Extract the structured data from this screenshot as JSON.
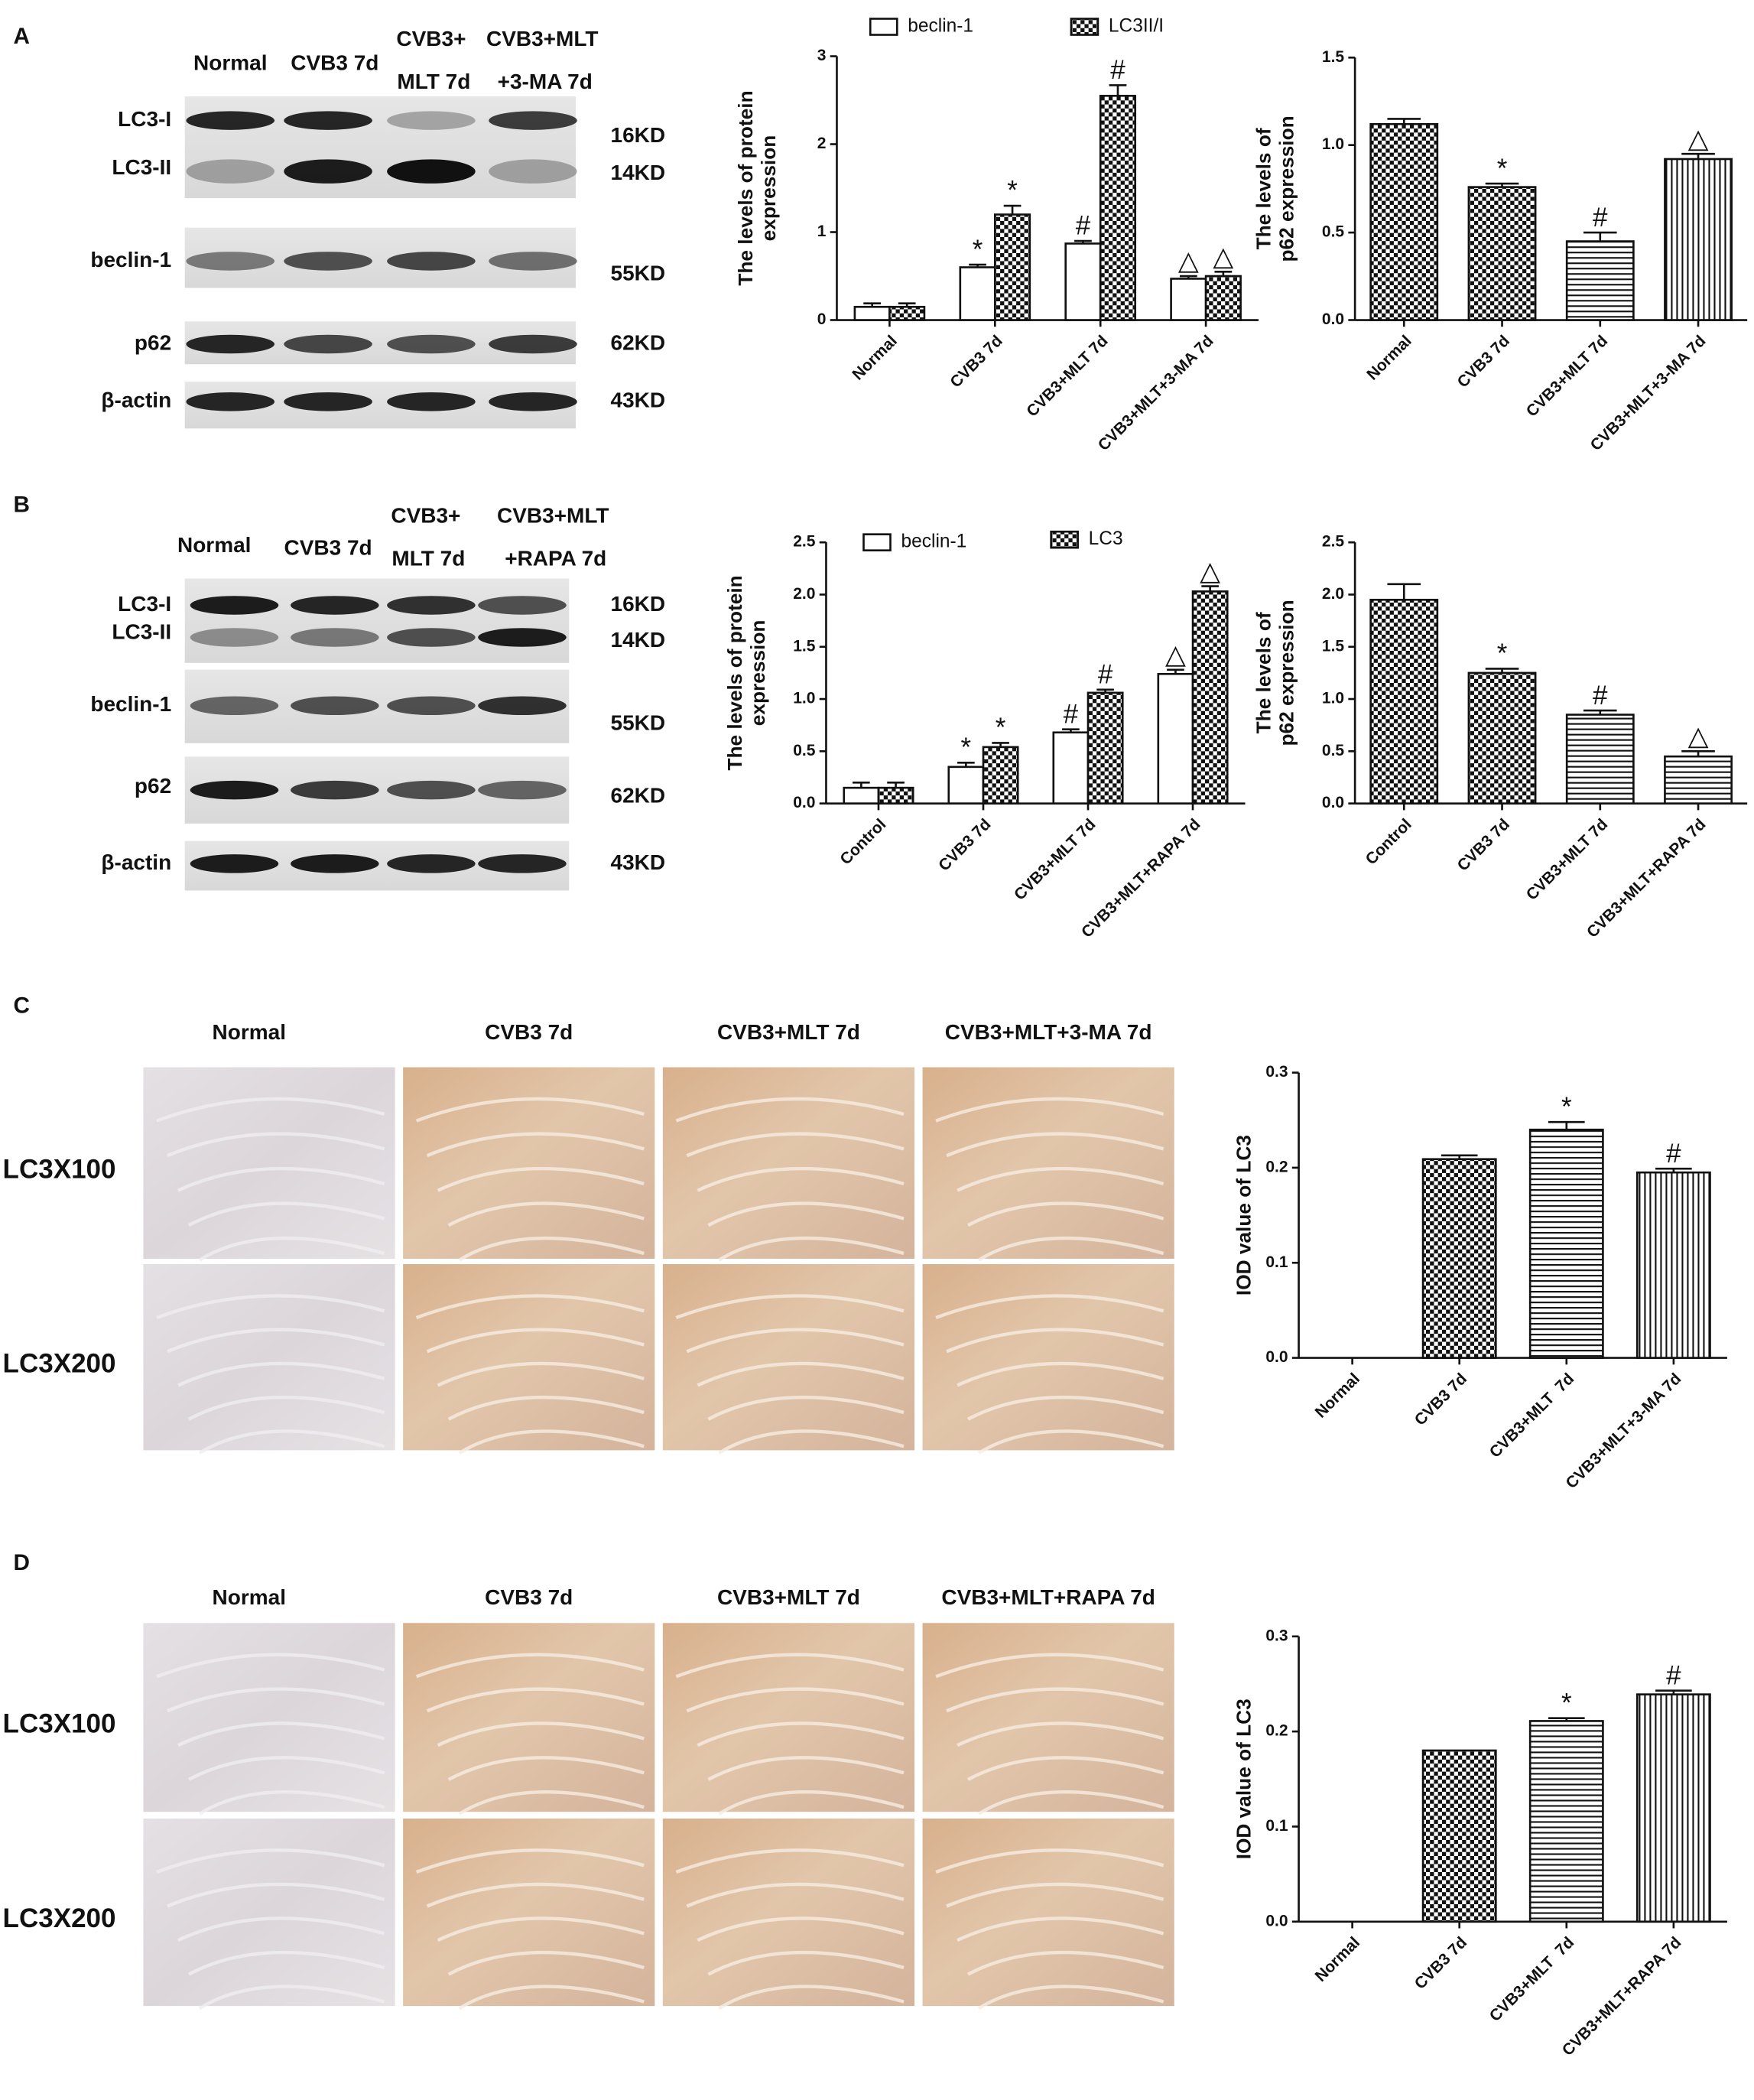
{
  "blots": [
    {
      "label": "A",
      "headers": [
        [
          "Normal"
        ],
        [
          "CVB3 7d"
        ],
        [
          "CVB3+",
          "MLT 7d"
        ],
        [
          "CVB3+MLT",
          "+3-MA 7d"
        ]
      ],
      "rows": [
        {
          "name": "LC3-I",
          "size": "16KD"
        },
        {
          "name": "LC3-II",
          "size": "14KD"
        },
        {
          "name": "beclin-1",
          "size": "55KD"
        },
        {
          "name": "p62",
          "size": "62KD"
        },
        {
          "name": "β-actin",
          "size": "43KD"
        }
      ]
    },
    {
      "label": "B",
      "headers": [
        [
          "Normal"
        ],
        [
          "CVB3 7d"
        ],
        [
          "CVB3+",
          "MLT 7d"
        ],
        [
          "CVB3+MLT",
          "+RAPA 7d"
        ]
      ],
      "rows": [
        {
          "name": "LC3-I",
          "size": "16KD"
        },
        {
          "name": "LC3-II",
          "size": "14KD"
        },
        {
          "name": "beclin-1",
          "size": "55KD"
        },
        {
          "name": "p62",
          "size": "62KD"
        },
        {
          "name": "β-actin",
          "size": "43KD"
        }
      ]
    }
  ],
  "histology": [
    {
      "label": "C",
      "columns": [
        "Normal",
        "CVB3 7d",
        "CVB3+MLT 7d",
        "CVB3+MLT+3-MA 7d"
      ],
      "rows": [
        "LC3X100",
        "LC3X200"
      ]
    },
    {
      "label": "D",
      "columns": [
        "Normal",
        "CVB3 7d",
        "CVB3+MLT 7d",
        "CVB3+MLT+RAPA 7d"
      ],
      "rows": [
        "LC3X100",
        "LC3X200"
      ]
    }
  ],
  "chart_data": [
    {
      "type": "bar",
      "ylabel": [
        "The levels of protein",
        "expression"
      ],
      "categories": [
        "Normal",
        "CVB3 7d",
        "CVB3+MLT 7d",
        "CVB3+MLT+3-MA 7d"
      ],
      "series": [
        {
          "name": "beclin-1",
          "pattern": "white",
          "values": [
            0.15,
            0.6,
            0.87,
            0.47
          ],
          "errors": [
            0.04,
            0.03,
            0.03,
            0.03
          ],
          "markers": [
            null,
            "*",
            "#",
            "△"
          ]
        },
        {
          "name": "LC3II/I",
          "pattern": "checker",
          "values": [
            0.15,
            1.2,
            2.55,
            0.5
          ],
          "errors": [
            0.04,
            0.1,
            0.12,
            0.05
          ],
          "markers": [
            null,
            "*",
            "#",
            "△"
          ]
        }
      ],
      "ylim": [
        0,
        3
      ],
      "yticks": [
        0,
        1,
        2,
        3
      ]
    },
    {
      "type": "bar",
      "ylabel": [
        "The levels of",
        "p62 expression"
      ],
      "categories": [
        "Normal",
        "CVB3 7d",
        "CVB3+MLT 7d",
        "CVB3+MLT+3-MA 7d"
      ],
      "values": [
        1.12,
        0.76,
        0.45,
        0.92
      ],
      "errors": [
        0.03,
        0.02,
        0.05,
        0.03
      ],
      "markers": [
        null,
        "*",
        "#",
        "△"
      ],
      "patterns": [
        "checker",
        "checker",
        "hlines",
        "vlines"
      ],
      "ylim": [
        0,
        1.5
      ],
      "yticks": [
        {
          "value": 0,
          "label": "0.0"
        },
        0.5,
        {
          "value": 1,
          "label": "1.0"
        },
        1.5
      ]
    },
    {
      "type": "bar",
      "ylabel": [
        "The levels of protein",
        "expression"
      ],
      "categories": [
        "Control",
        "CVB3 7d",
        "CVB3+MLT 7d",
        "CVB3+MLT+RAPA 7d"
      ],
      "series": [
        {
          "name": "beclin-1",
          "pattern": "white",
          "values": [
            0.15,
            0.35,
            0.68,
            1.24
          ],
          "errors": [
            0.05,
            0.04,
            0.03,
            0.04
          ],
          "markers": [
            null,
            "*",
            "#",
            "△"
          ]
        },
        {
          "name": "LC3",
          "pattern": "checker",
          "values": [
            0.15,
            0.54,
            1.06,
            2.03
          ],
          "errors": [
            0.05,
            0.04,
            0.03,
            0.05
          ],
          "markers": [
            null,
            "*",
            "#",
            "△"
          ]
        }
      ],
      "ylim": [
        0,
        2.5
      ],
      "yticks": [
        {
          "value": 0,
          "label": "0.0"
        },
        0.5,
        {
          "value": 1,
          "label": "1.0"
        },
        1.5,
        {
          "value": 2,
          "label": "2.0"
        },
        2.5
      ]
    },
    {
      "type": "bar",
      "ylabel": [
        "The levels of",
        "p62 expression"
      ],
      "categories": [
        "Control",
        "CVB3 7d",
        "CVB3+MLT 7d",
        "CVB3+MLT+RAPA 7d"
      ],
      "values": [
        1.95,
        1.25,
        0.85,
        0.45
      ],
      "errors": [
        0.15,
        0.04,
        0.04,
        0.05
      ],
      "markers": [
        null,
        "*",
        "#",
        "△"
      ],
      "patterns": [
        "checker",
        "checker",
        "hlines",
        "hlines"
      ],
      "ylim": [
        0,
        2.5
      ],
      "yticks": [
        {
          "value": 0,
          "label": "0.0"
        },
        0.5,
        {
          "value": 1,
          "label": "1.0"
        },
        1.5,
        {
          "value": 2,
          "label": "2.0"
        },
        2.5
      ]
    },
    {
      "type": "bar",
      "ylabel": [
        "IOD value of LC3"
      ],
      "categories": [
        "Normal",
        "CVB3 7d",
        "CVB3+MLT  7d",
        "CVB3+MLT+3-MA 7d"
      ],
      "values": [
        0,
        0.209,
        0.24,
        0.195
      ],
      "errors": [
        0,
        0.004,
        0.008,
        0.004
      ],
      "markers": [
        null,
        null,
        "*",
        "#"
      ],
      "patterns": [
        "white",
        "checker",
        "hlines",
        "vlines"
      ],
      "ylim": [
        0,
        0.3
      ],
      "yticks": [
        {
          "value": 0,
          "label": "0.0"
        },
        0.1,
        0.2,
        0.3
      ]
    },
    {
      "type": "bar",
      "ylabel": [
        "IOD value of LC3"
      ],
      "categories": [
        "Normal",
        "CVB3 7d",
        "CVB3+MLT  7d",
        "CVB3+MLT+RAPA 7d"
      ],
      "values": [
        0,
        0.18,
        0.211,
        0.239
      ],
      "errors": [
        0,
        0,
        0.003,
        0.004
      ],
      "markers": [
        null,
        null,
        "*",
        "#"
      ],
      "patterns": [
        "white",
        "checker",
        "hlines",
        "vlines"
      ],
      "ylim": [
        0,
        0.3
      ],
      "yticks": [
        {
          "value": 0,
          "label": "0.0"
        },
        0.1,
        0.2,
        0.3
      ]
    }
  ]
}
